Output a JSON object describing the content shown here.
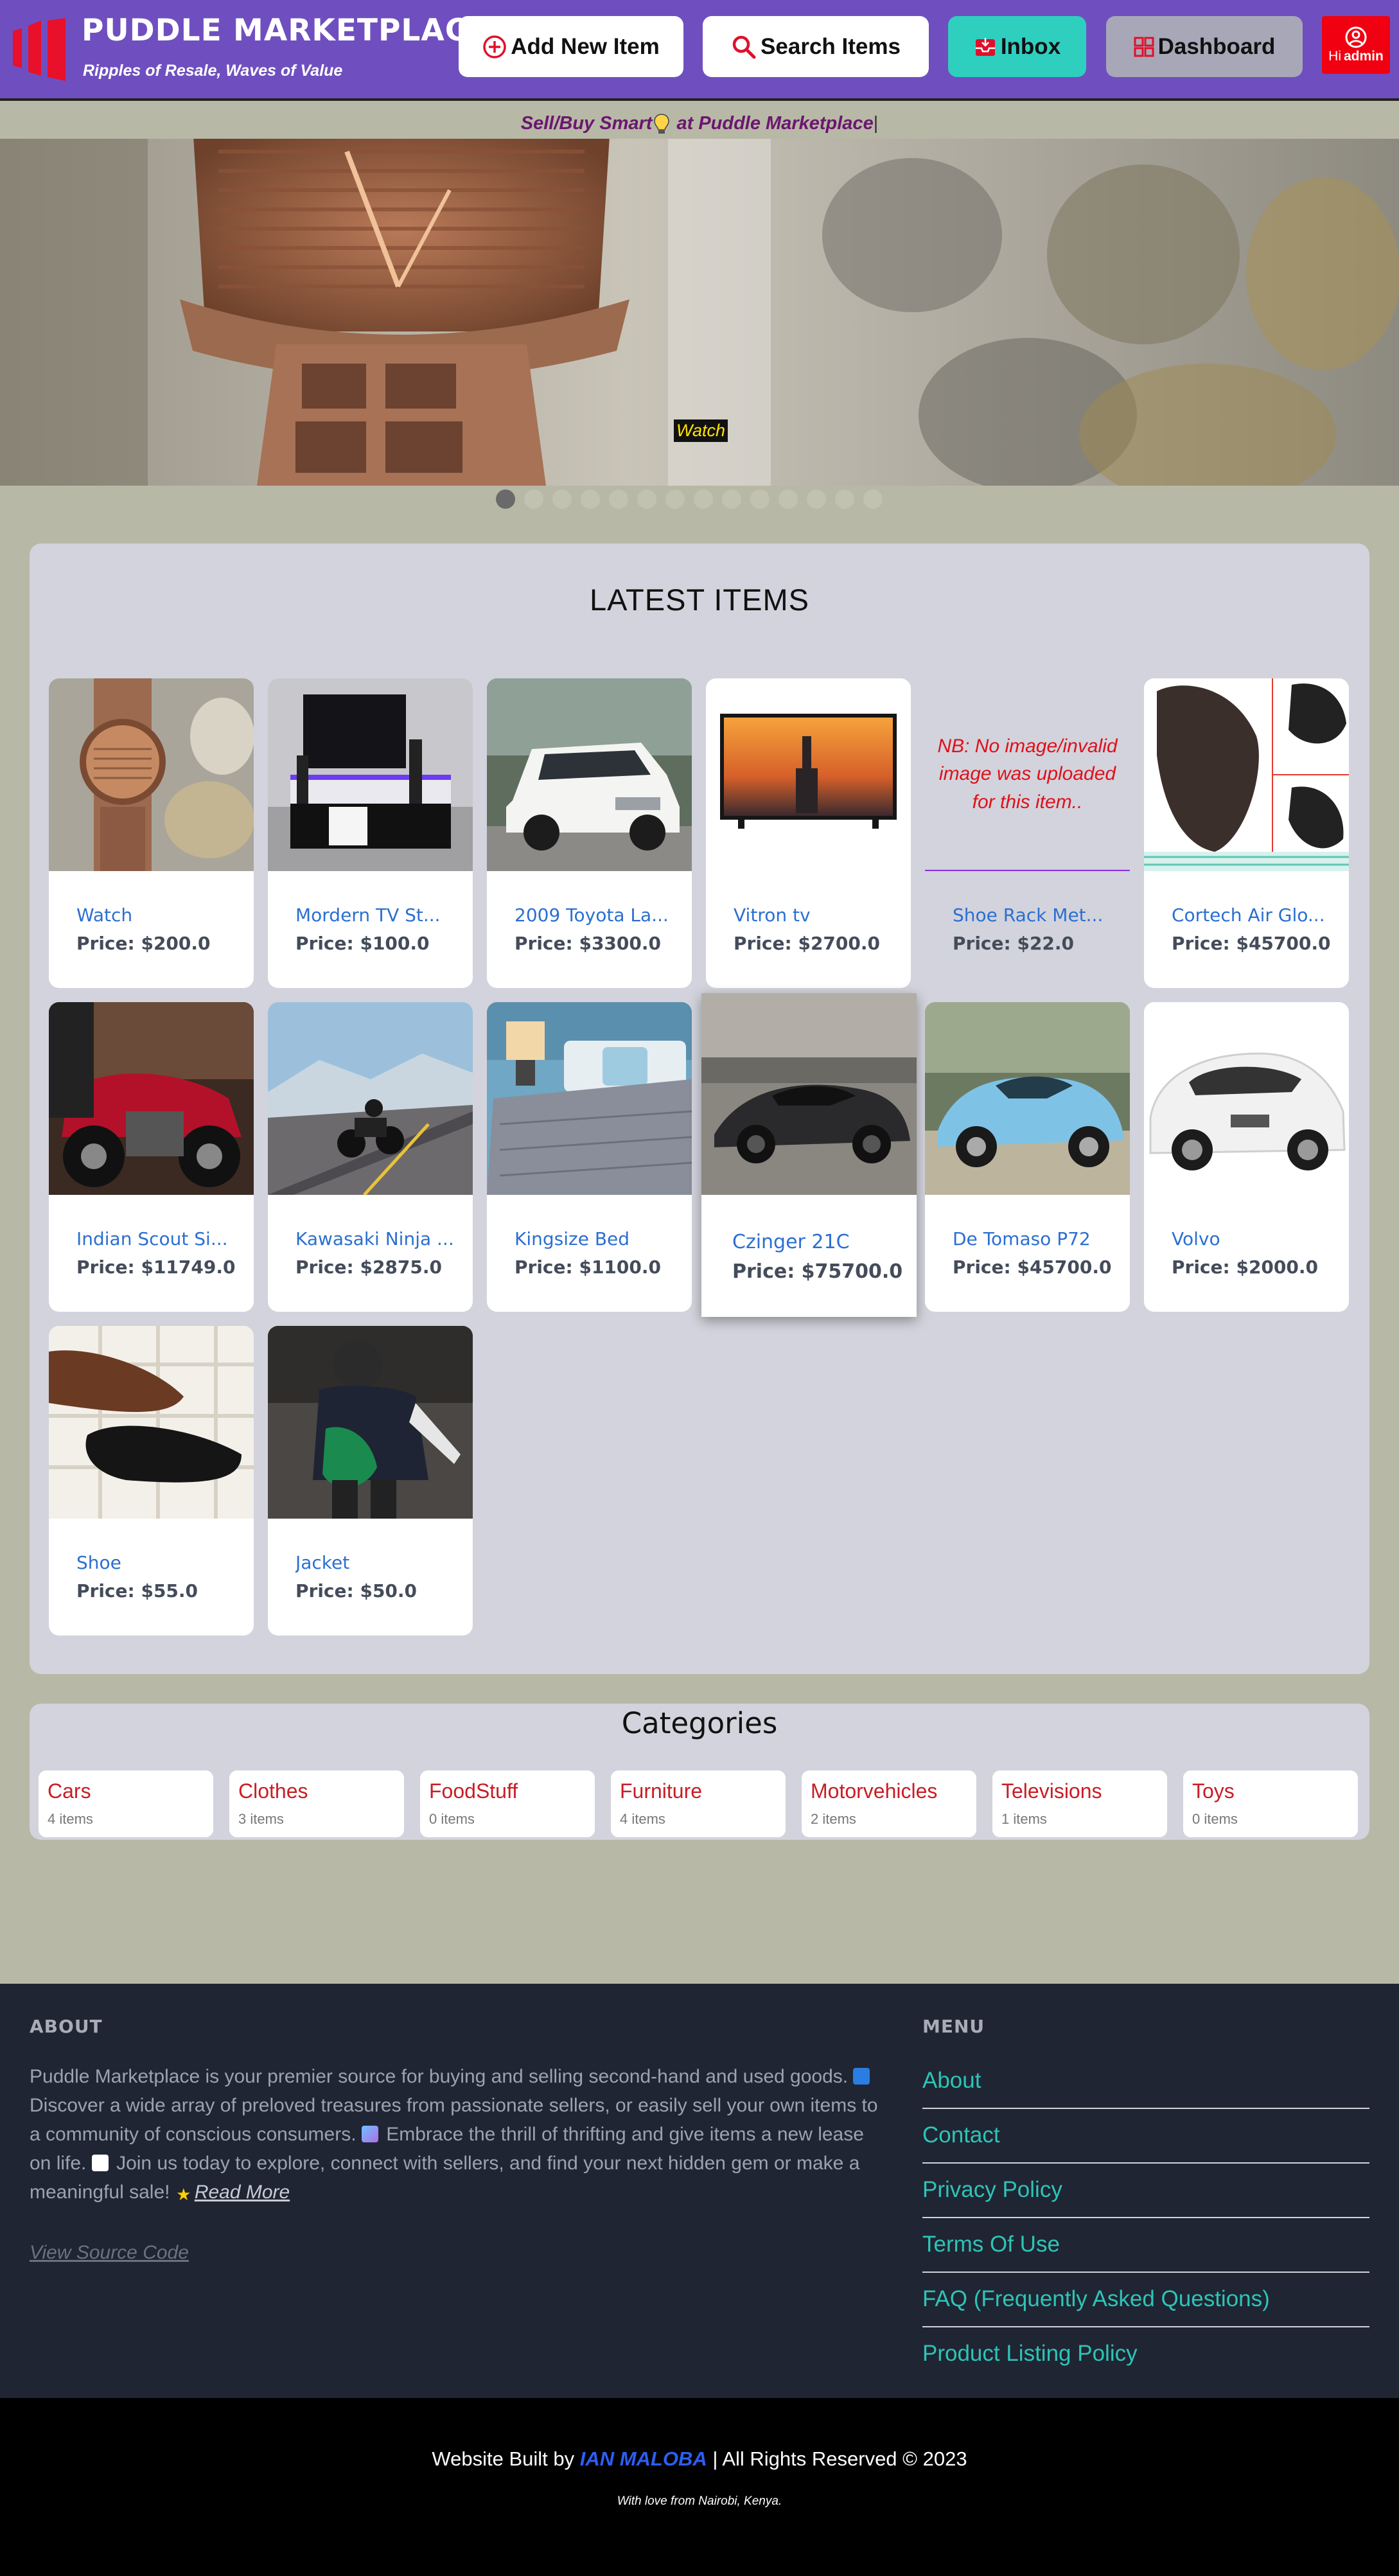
{
  "header": {
    "brand_title": "PUDDLE MARKETPLACE",
    "brand_subtitle": "Ripples of Resale, Waves of Value",
    "add_item_label": "Add New Item",
    "search_label": "Search Items",
    "inbox_label": "Inbox",
    "dashboard_label": "Dashboard",
    "user_greeting": "Hi",
    "user_name": "admin"
  },
  "tagline": {
    "before": "Sell/Buy Smart",
    "after": " at Puddle Marketplace",
    "cursor": "|"
  },
  "carousel": {
    "caption": "Watch",
    "slide_count": 14,
    "active_index": 0
  },
  "latest": {
    "title": "LATEST ITEMS",
    "no_image_text": "NB: No image/invalid image was uploaded for this item..",
    "items": [
      {
        "title": "Watch",
        "price": "Price: $200.0",
        "image": "watch"
      },
      {
        "title": "Mordern TV St...",
        "price": "Price: $100.0",
        "image": "tv-stand"
      },
      {
        "title": "2009 Toyota La...",
        "price": "Price: $3300.0",
        "image": "toyota"
      },
      {
        "title": "Vitron tv",
        "price": "Price: $2700.0",
        "image": "tv"
      },
      {
        "title": "Shoe Rack Met...",
        "price": "Price: $22.0",
        "image": "none"
      },
      {
        "title": "Cortech Air Glo...",
        "price": "Price: $45700.0",
        "image": "gloves"
      },
      {
        "title": "Indian Scout Si...",
        "price": "Price: $11749.0",
        "image": "motorbike-red"
      },
      {
        "title": "Kawasaki Ninja ...",
        "price": "Price: $2875.0",
        "image": "motorbike-road"
      },
      {
        "title": "Kingsize Bed",
        "price": "Price: $1100.0",
        "image": "bed"
      },
      {
        "title": "Czinger 21C",
        "price": "Price: $75700.0",
        "image": "czinger"
      },
      {
        "title": "De Tomaso P72",
        "price": "Price: $45700.0",
        "image": "detomaso"
      },
      {
        "title": "Volvo",
        "price": "Price: $2000.0",
        "image": "volvo"
      },
      {
        "title": "Shoe",
        "price": "Price: $55.0",
        "image": "shoes"
      },
      {
        "title": "Jacket",
        "price": "Price: $50.0",
        "image": "jacket"
      }
    ]
  },
  "categories": {
    "title": "Categories",
    "items": [
      {
        "name": "Cars",
        "count": "4 items"
      },
      {
        "name": "Clothes",
        "count": "3 items"
      },
      {
        "name": "FoodStuff",
        "count": "0 items"
      },
      {
        "name": "Furniture",
        "count": "4 items"
      },
      {
        "name": "Motorvehicles",
        "count": "2 items"
      },
      {
        "name": "Televisions",
        "count": "1 items"
      },
      {
        "name": "Toys",
        "count": "0 items"
      }
    ]
  },
  "footer": {
    "about_heading": "ABOUT",
    "about_p1": "Puddle Marketplace is your premier source for buying and selling second-hand and used goods.",
    "about_p2": " Discover a wide array of preloved treasures from passionate sellers, or easily sell your own items to a community of conscious consumers.",
    "about_p3": " Embrace the thrill of thrifting and give items a new lease on life.",
    "about_p4": " Join us today to explore, connect with sellers, and find your next hidden gem or make a meaningful sale!",
    "read_more": "Read More",
    "view_source": "View Source Code",
    "menu_heading": "MENU",
    "menu": [
      "About",
      "Contact",
      "Privacy Policy",
      "Terms Of Use",
      "FAQ (Frequently Asked Questions)",
      "Product Listing Policy"
    ]
  },
  "bottom": {
    "built_by": "Website Built by ",
    "author": "IAN MALOBA",
    "rights": " | All Rights Reserved © 2023",
    "love": "With love from Nairobi, Kenya."
  },
  "colors": {
    "header_bg": "#6f4fbf",
    "page_bg": "#b8b8a6",
    "panel_bg": "#d2d3dc",
    "footer_bg": "#1f2533",
    "link_teal": "#2ec4b6",
    "item_title_blue": "#2b6fd1",
    "category_red": "#c81d25",
    "inbox_teal": "#2fcfc0",
    "user_red": "#f00010"
  }
}
